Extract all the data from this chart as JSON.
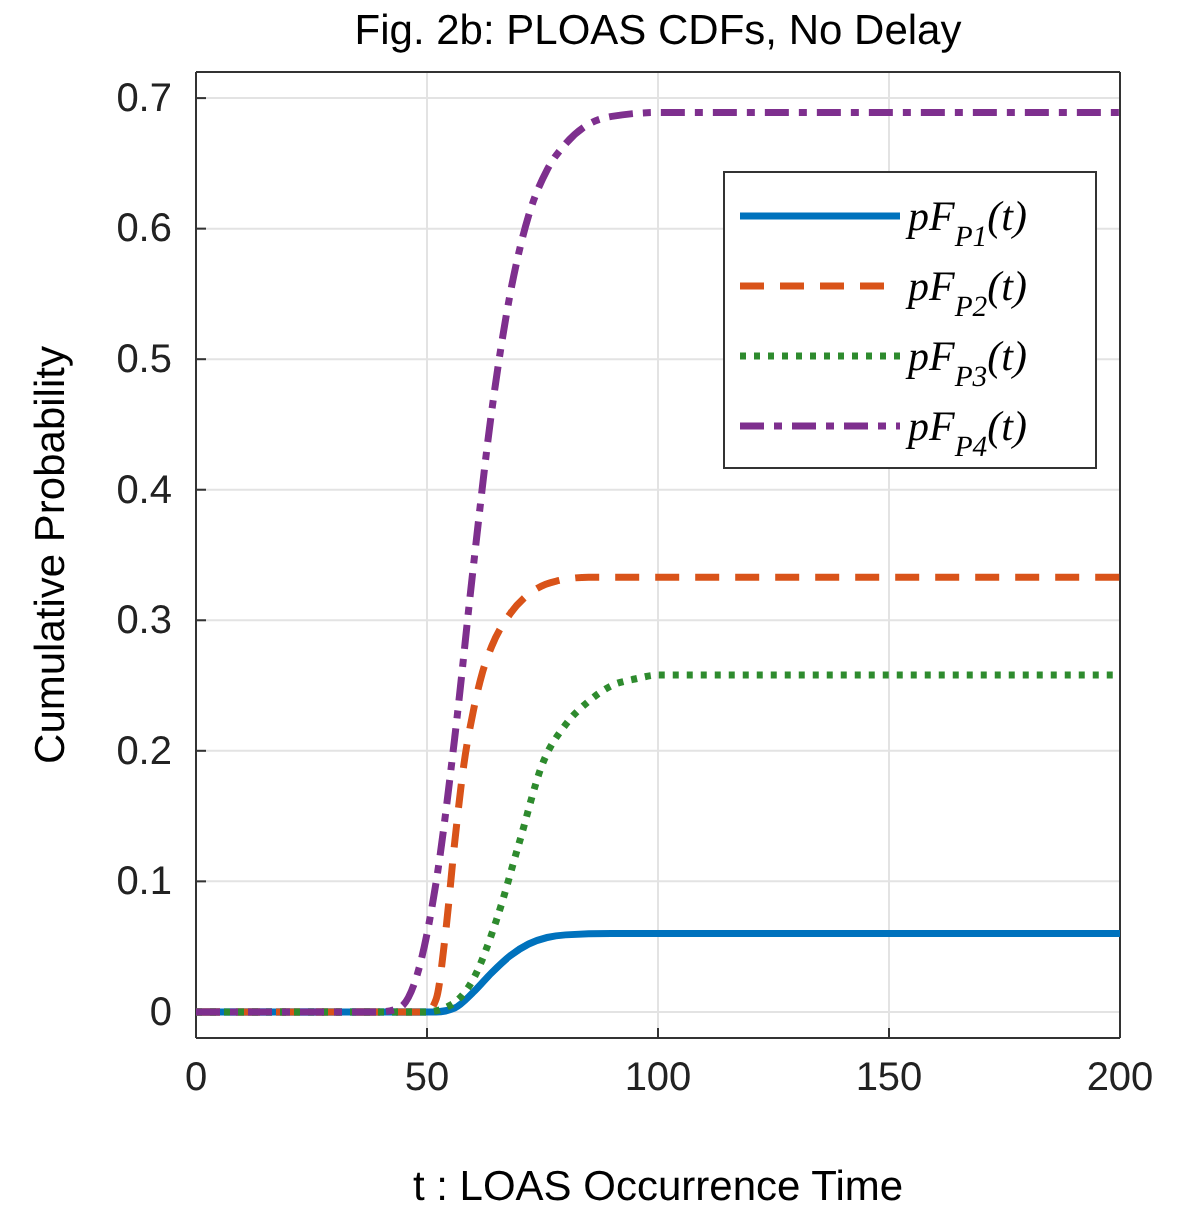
{
  "chart_data": {
    "type": "line",
    "title": "Fig. 2b: PLOAS CDFs, No Delay",
    "xlabel": "t : LOAS Occurrence Time",
    "ylabel": "Cumulative Probability",
    "xlim": [
      0,
      200
    ],
    "xticks": [
      0,
      50,
      100,
      150,
      200
    ],
    "ylim": [
      -0.02,
      0.72
    ],
    "yticks": [
      0,
      0.1,
      0.2,
      0.3,
      0.4,
      0.5,
      0.6,
      0.7
    ],
    "grid": true,
    "legend": "top right",
    "series": [
      {
        "name": "pF$_{P1}$(t)",
        "color": "#0072bd",
        "line_style": "solid",
        "x": [
          0,
          52,
          56,
          60,
          64,
          68,
          72,
          76,
          80,
          90,
          200
        ],
        "values": [
          0,
          0,
          0.003,
          0.015,
          0.03,
          0.043,
          0.052,
          0.057,
          0.059,
          0.06,
          0.06
        ]
      },
      {
        "name": "pF$_{P2}$(t)",
        "color": "#d95319",
        "line_style": "dashed",
        "x": [
          0,
          50,
          52,
          54,
          56,
          58,
          60,
          62,
          64,
          68,
          72,
          78,
          85,
          200
        ],
        "values": [
          0,
          0,
          0.01,
          0.06,
          0.13,
          0.19,
          0.23,
          0.26,
          0.28,
          0.305,
          0.32,
          0.33,
          0.333,
          0.333
        ]
      },
      {
        "name": "pF$_{P3}$(t)",
        "color": "#2e8b2e",
        "line_style": "dotted",
        "x": [
          0,
          50,
          55,
          60,
          65,
          70,
          75,
          80,
          85,
          90,
          95,
          100,
          200
        ],
        "values": [
          0,
          0,
          0.005,
          0.025,
          0.07,
          0.13,
          0.19,
          0.22,
          0.238,
          0.25,
          0.255,
          0.258,
          0.258
        ]
      },
      {
        "name": "pF$_{P4}$(t)",
        "color": "#7e2f8e",
        "line_style": "dashdot",
        "x": [
          0,
          40,
          44,
          48,
          52,
          56,
          60,
          64,
          68,
          72,
          76,
          80,
          85,
          90,
          100,
          200
        ],
        "values": [
          0,
          0,
          0.003,
          0.03,
          0.1,
          0.21,
          0.34,
          0.46,
          0.55,
          0.61,
          0.645,
          0.665,
          0.68,
          0.686,
          0.689,
          0.689
        ]
      }
    ]
  }
}
